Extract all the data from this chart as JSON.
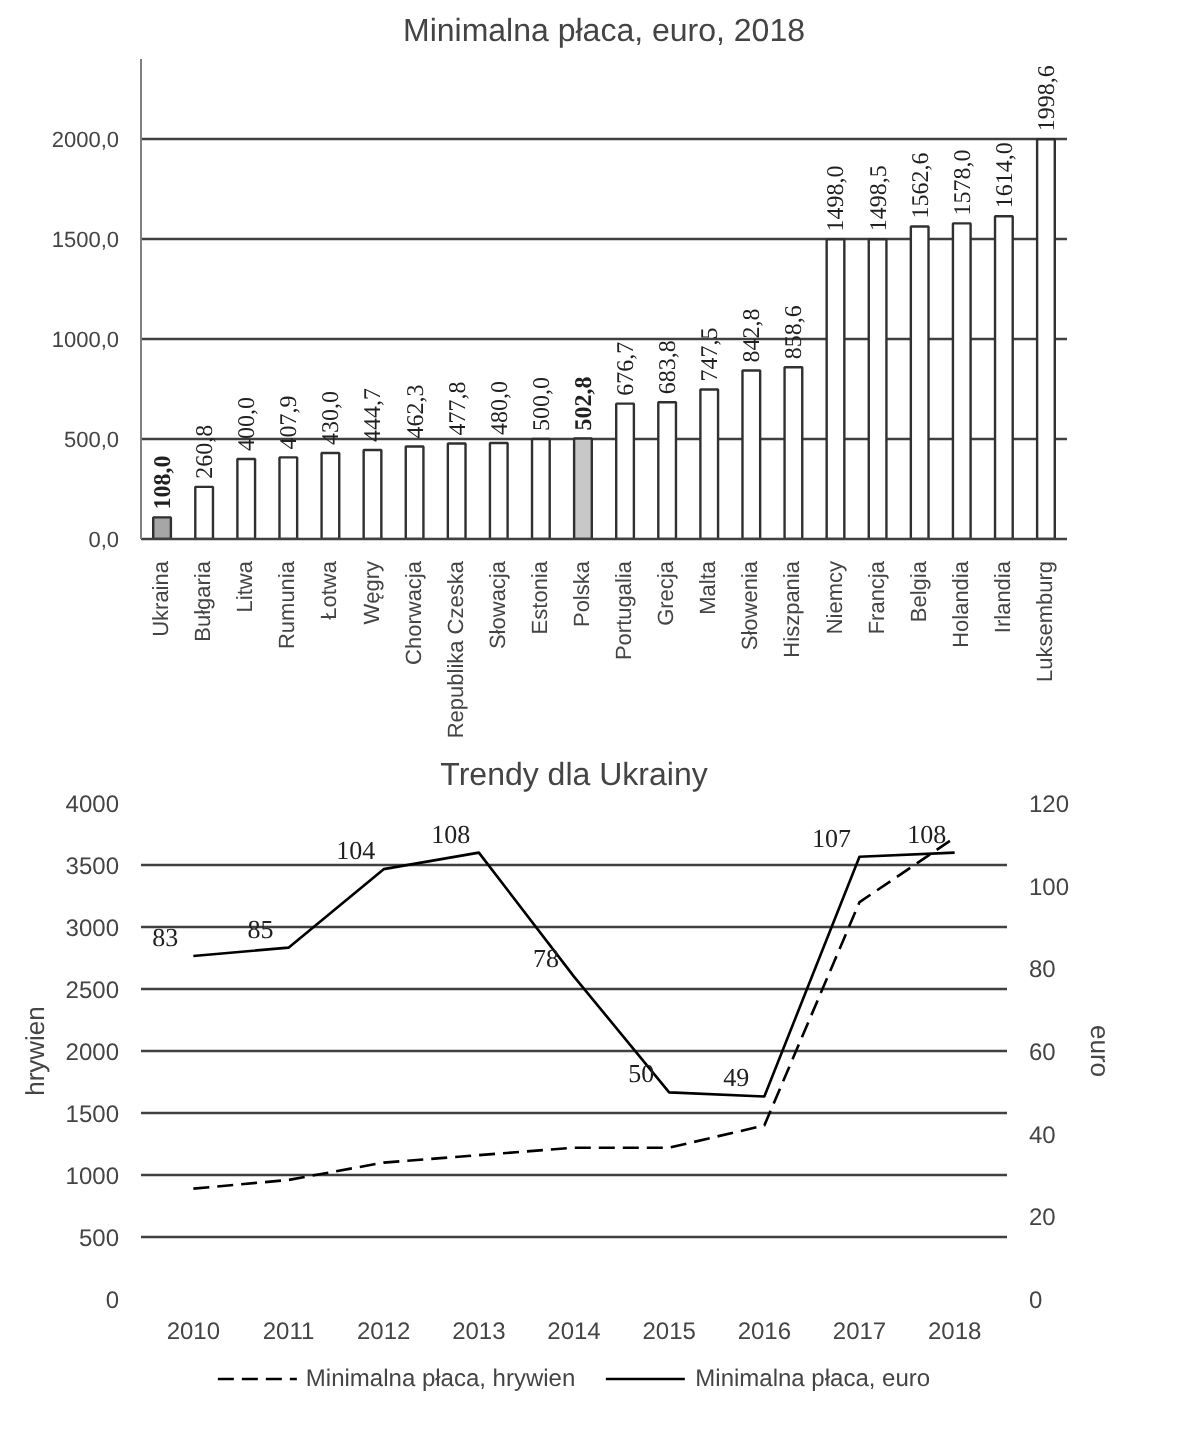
{
  "chart_data": [
    {
      "type": "bar",
      "title": "Minimalna płaca, euro, 2018",
      "categories": [
        "Ukraina",
        "Bułgaria",
        "Litwa",
        "Rumunia",
        "Łotwa",
        "Węgry",
        "Chorwacja",
        "Republika Czeska",
        "Słowacja",
        "Estonia",
        "Polska",
        "Portugalia",
        "Grecja",
        "Malta",
        "Słowenia",
        "Hiszpania",
        "Niemcy",
        "Francja",
        "Belgia",
        "Holandia",
        "Irlandia",
        "Luksemburg"
      ],
      "values": [
        108.0,
        260.8,
        400.0,
        407.9,
        430.0,
        444.7,
        462.3,
        477.8,
        480.0,
        500.0,
        502.8,
        676.7,
        683.8,
        747.5,
        842.8,
        858.6,
        1498.0,
        1498.5,
        1562.6,
        1578.0,
        1614.0,
        1998.6
      ],
      "colors": [
        "#a6a6a6",
        "#ffffff",
        "#ffffff",
        "#ffffff",
        "#ffffff",
        "#ffffff",
        "#ffffff",
        "#ffffff",
        "#ffffff",
        "#ffffff",
        "#c8c8c8",
        "#ffffff",
        "#ffffff",
        "#ffffff",
        "#ffffff",
        "#ffffff",
        "#ffffff",
        "#ffffff",
        "#ffffff",
        "#ffffff",
        "#ffffff",
        "#ffffff"
      ],
      "value_labels": [
        "108,0",
        "260,8",
        "400,0",
        "407,9",
        "430,0",
        "444,7",
        "462,3",
        "477,8",
        "480,0",
        "500,0",
        "502,8",
        "676,7",
        "683,8",
        "747,5",
        "842,8",
        "858,6",
        "1498,0",
        "1498,5",
        "1562,6",
        "1578,0",
        "1614,0",
        "1998,6"
      ],
      "ylim": [
        0,
        2400
      ],
      "yticks": [
        {
          "value": 0,
          "label": "0,0"
        },
        {
          "value": 500,
          "label": "500,0"
        },
        {
          "value": 1000,
          "label": "1000,0"
        },
        {
          "value": 1500,
          "label": "1500,0"
        },
        {
          "value": 2000,
          "label": "2000,0"
        }
      ],
      "grid": "y"
    },
    {
      "type": "line",
      "title": "Trendy dla Ukrainy",
      "ylabel": "hrywien",
      "y2label": "euro",
      "categories": [
        "2010",
        "2011",
        "2012",
        "2013",
        "2014",
        "2015",
        "2016",
        "2017",
        "2018"
      ],
      "series": [
        {
          "name": "Minimalna płaca, hrywien",
          "color": "#000000",
          "line_style": "dashed",
          "values": [
            890,
            960,
            1100,
            1160,
            1220,
            1220,
            1400,
            3200,
            3720
          ]
        },
        {
          "name": "Minimalna płaca, euro",
          "color": "#000000",
          "line_style": "solid",
          "axis": "y2",
          "values": [
            83,
            85,
            104,
            108,
            78,
            50,
            49,
            107,
            108
          ],
          "value_labels": [
            "83",
            "85",
            "104",
            "108",
            "78",
            "50",
            "49",
            "107",
            "108"
          ]
        }
      ],
      "ylim": [
        0,
        4000
      ],
      "yticks": [
        0,
        500,
        1000,
        1500,
        2000,
        2500,
        3000,
        3500,
        4000
      ],
      "y2lim": [
        0,
        120
      ],
      "y2ticks": [
        0,
        20,
        40,
        60,
        80,
        100,
        120
      ],
      "grid": "y",
      "legend": "bottom"
    }
  ]
}
